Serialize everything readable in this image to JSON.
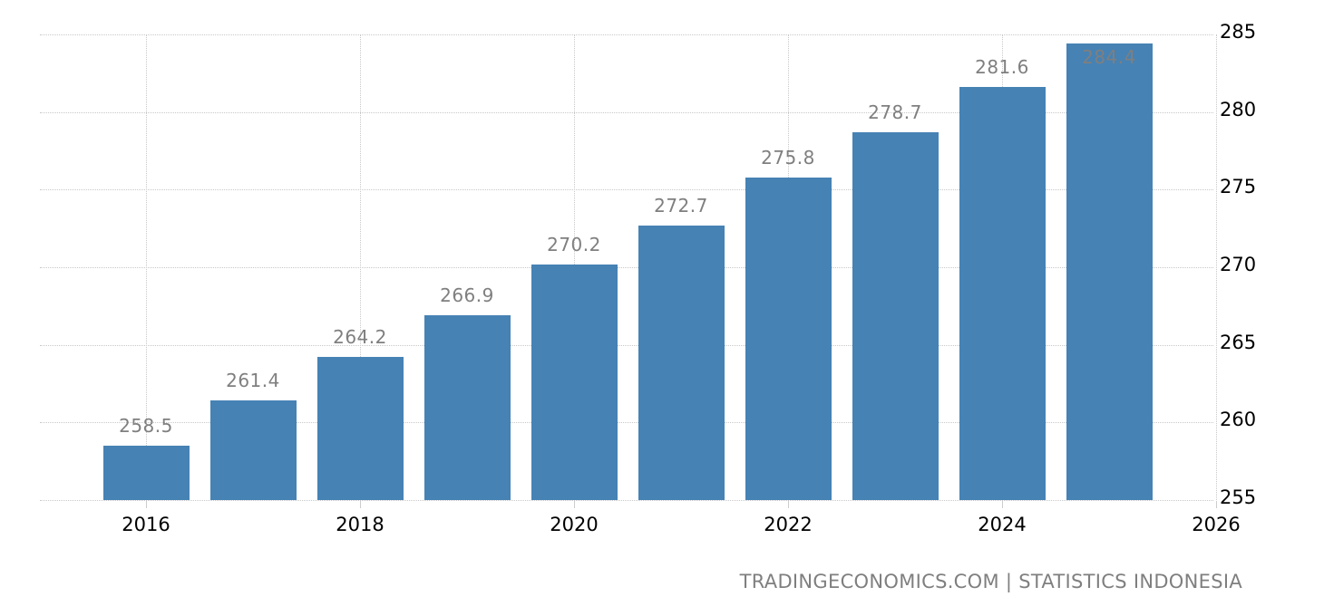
{
  "chart_data": {
    "type": "bar",
    "title": "",
    "xlabel": "",
    "ylabel": "",
    "categories": [
      "2016",
      "2017",
      "2018",
      "2019",
      "2020",
      "2021",
      "2022",
      "2023",
      "2024",
      "2025"
    ],
    "values": [
      258.5,
      261.4,
      264.2,
      266.9,
      270.2,
      272.7,
      275.8,
      278.7,
      281.6,
      284.4
    ],
    "value_labels": [
      "258.5",
      "261.4",
      "264.2",
      "266.9",
      "270.2",
      "272.7",
      "275.8",
      "278.7",
      "281.6",
      "284.4"
    ],
    "ylim": [
      255,
      285
    ],
    "yticks": [
      255,
      260,
      265,
      270,
      275,
      280,
      285
    ],
    "xticks": [
      "2016",
      "2018",
      "2020",
      "2022",
      "2024",
      "2026"
    ],
    "xlim": [
      2015.33,
      2026
    ],
    "y_axis_position": "right",
    "grid": true,
    "legend": "none",
    "bar_color": "#4682b4",
    "label_color": "#7f7f7f"
  },
  "source_text": "TRADINGECONOMICS.COM | STATISTICS INDONESIA"
}
